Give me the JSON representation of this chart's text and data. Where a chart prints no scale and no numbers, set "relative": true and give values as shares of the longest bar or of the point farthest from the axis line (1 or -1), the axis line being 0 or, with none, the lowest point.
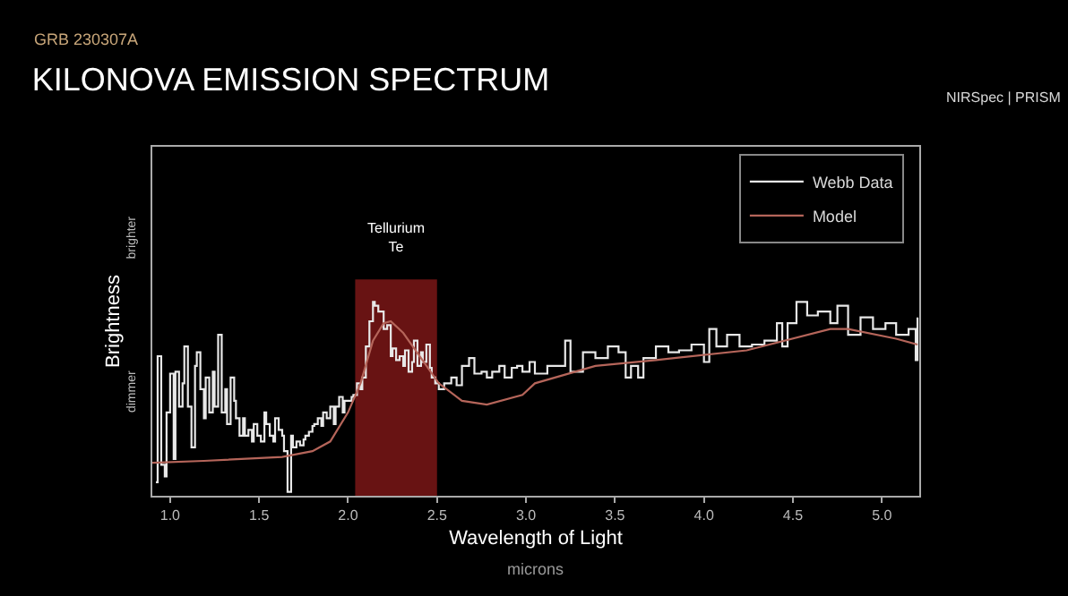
{
  "chart_data": {
    "type": "line",
    "subtitle": "GRB 230307A",
    "title": "KILONOVA EMISSION SPECTRUM",
    "xlabel": "Wavelength of Light",
    "ylabel": "Brightness",
    "relative": true,
    "annotations": [
      "NIRSpec | PRISM",
      "brighter",
      "dimmer",
      "microns"
    ],
    "xlim": [
      0.9,
      5.21
    ],
    "xticks": [
      {
        "value": 1,
        "label": "1.0"
      },
      {
        "value": 1.5,
        "label": "1.5"
      },
      {
        "value": 2,
        "label": "2.0"
      },
      {
        "value": 2.5,
        "label": "2.5"
      },
      {
        "value": 3,
        "label": "3.0"
      },
      {
        "value": 3.5,
        "label": "3.5"
      },
      {
        "value": 4,
        "label": "4.0"
      },
      {
        "value": 4.5,
        "label": "4.5"
      },
      {
        "value": 5,
        "label": "5.0"
      }
    ],
    "grid": false,
    "legend": "top right",
    "marker": "none",
    "bands": [
      {
        "axis": "x",
        "from": 2.04,
        "to": 2.5,
        "label": "Tellurium\nTe",
        "color": "#8b1a1a"
      }
    ],
    "series": [
      {
        "name": "Webb Data",
        "type": "step",
        "color": "#e8e8e8",
        "x": [
          0.92,
          0.93,
          0.95,
          0.97,
          0.98,
          1.0,
          1.02,
          1.03,
          1.05,
          1.07,
          1.08,
          1.1,
          1.12,
          1.14,
          1.15,
          1.17,
          1.19,
          1.2,
          1.22,
          1.24,
          1.25,
          1.27,
          1.29,
          1.31,
          1.32,
          1.34,
          1.36,
          1.37,
          1.39,
          1.41,
          1.42,
          1.44,
          1.46,
          1.47,
          1.49,
          1.51,
          1.53,
          1.54,
          1.56,
          1.58,
          1.59,
          1.61,
          1.63,
          1.64,
          1.66,
          1.68,
          1.69,
          1.71,
          1.73,
          1.75,
          1.76,
          1.78,
          1.8,
          1.81,
          1.83,
          1.85,
          1.86,
          1.88,
          1.9,
          1.92,
          1.93,
          1.95,
          1.97,
          1.98,
          2.0,
          2.02,
          2.03,
          2.05,
          2.07,
          2.08,
          2.1,
          2.12,
          2.14,
          2.15,
          2.17,
          2.19,
          2.2,
          2.22,
          2.24,
          2.25,
          2.27,
          2.29,
          2.31,
          2.32,
          2.34,
          2.36,
          2.37,
          2.39,
          2.41,
          2.42,
          2.44,
          2.46,
          2.47,
          2.49,
          2.51,
          2.54,
          2.58,
          2.61,
          2.64,
          2.68,
          2.71,
          2.75,
          2.78,
          2.81,
          2.85,
          2.88,
          2.92,
          2.95,
          2.98,
          3.02,
          3.05,
          3.12,
          3.19,
          3.22,
          3.25,
          3.32,
          3.39,
          3.46,
          3.52,
          3.56,
          3.59,
          3.63,
          3.66,
          3.73,
          3.8,
          3.86,
          3.93,
          4.0,
          4.03,
          4.07,
          4.13,
          4.2,
          4.27,
          4.34,
          4.41,
          4.44,
          4.47,
          4.52,
          4.58,
          4.64,
          4.71,
          4.75,
          4.81,
          4.88,
          4.95,
          5.02,
          5.08,
          5.15,
          5.19,
          5.2
        ],
        "values": [
          0.07,
          0.72,
          0.16,
          0.1,
          0.43,
          0.63,
          0.19,
          0.64,
          0.46,
          0.58,
          0.77,
          0.46,
          0.25,
          0.67,
          0.74,
          0.55,
          0.4,
          0.61,
          0.43,
          0.64,
          0.46,
          0.83,
          0.43,
          0.55,
          0.37,
          0.61,
          0.49,
          0.4,
          0.31,
          0.4,
          0.31,
          0.34,
          0.28,
          0.37,
          0.31,
          0.28,
          0.43,
          0.37,
          0.31,
          0.28,
          0.4,
          0.34,
          0.31,
          0.23,
          0.02,
          0.31,
          0.25,
          0.28,
          0.26,
          0.29,
          0.31,
          0.33,
          0.36,
          0.37,
          0.4,
          0.36,
          0.43,
          0.4,
          0.46,
          0.37,
          0.46,
          0.51,
          0.43,
          0.49,
          0.49,
          0.51,
          0.52,
          0.58,
          0.55,
          0.61,
          0.77,
          0.9,
          1.0,
          0.98,
          0.95,
          0.95,
          0.86,
          0.88,
          0.72,
          0.76,
          0.7,
          0.72,
          0.67,
          0.75,
          0.64,
          0.69,
          0.8,
          0.67,
          0.74,
          0.69,
          0.78,
          0.66,
          0.61,
          0.58,
          0.55,
          0.58,
          0.61,
          0.57,
          0.67,
          0.71,
          0.63,
          0.64,
          0.61,
          0.64,
          0.67,
          0.61,
          0.66,
          0.67,
          0.64,
          0.69,
          0.63,
          0.67,
          0.67,
          0.8,
          0.64,
          0.74,
          0.71,
          0.77,
          0.74,
          0.61,
          0.67,
          0.61,
          0.71,
          0.77,
          0.74,
          0.75,
          0.78,
          0.69,
          0.86,
          0.77,
          0.83,
          0.77,
          0.78,
          0.8,
          0.89,
          0.77,
          0.89,
          1.0,
          0.93,
          0.95,
          0.89,
          0.98,
          0.83,
          0.92,
          0.86,
          0.89,
          0.83,
          0.86,
          0.7,
          0.92
        ]
      },
      {
        "name": "Model",
        "color": "#b5655a",
        "x": [
          0.9,
          1.19,
          1.63,
          1.8,
          1.9,
          2.0,
          2.07,
          2.14,
          2.2,
          2.24,
          2.31,
          2.41,
          2.51,
          2.64,
          2.78,
          2.98,
          3.05,
          3.39,
          3.73,
          4.24,
          4.71,
          4.81,
          5.08,
          5.2
        ],
        "values": [
          0.17,
          0.18,
          0.2,
          0.23,
          0.28,
          0.43,
          0.58,
          0.8,
          0.89,
          0.9,
          0.84,
          0.71,
          0.58,
          0.49,
          0.47,
          0.52,
          0.58,
          0.67,
          0.7,
          0.75,
          0.86,
          0.86,
          0.81,
          0.78
        ]
      }
    ]
  }
}
